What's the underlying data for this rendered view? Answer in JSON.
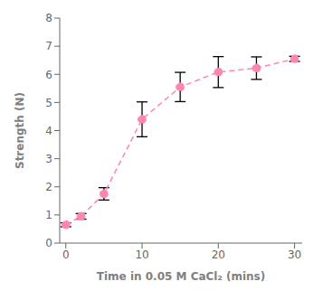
{
  "chart_data": {
    "type": "line",
    "x": [
      0,
      2,
      5,
      10,
      15,
      20,
      25,
      30
    ],
    "values": [
      0.65,
      0.95,
      1.75,
      4.4,
      5.55,
      6.08,
      6.22,
      6.55
    ],
    "yerr": [
      0.07,
      0.1,
      0.22,
      0.62,
      0.52,
      0.55,
      0.4,
      0.09
    ],
    "xlabel": "Time in 0.05 M CaCl₂ (mins)",
    "ylabel": "Strength (N)",
    "xlim": [
      -0.8,
      31
    ],
    "ylim": [
      0,
      8
    ],
    "xticks": [
      0,
      10,
      20,
      30
    ],
    "yticks": [
      0,
      1,
      2,
      3,
      4,
      5,
      6,
      7,
      8
    ],
    "color": "#FF85B3",
    "marker": "o",
    "line_style": "dashed",
    "grid": false
  }
}
